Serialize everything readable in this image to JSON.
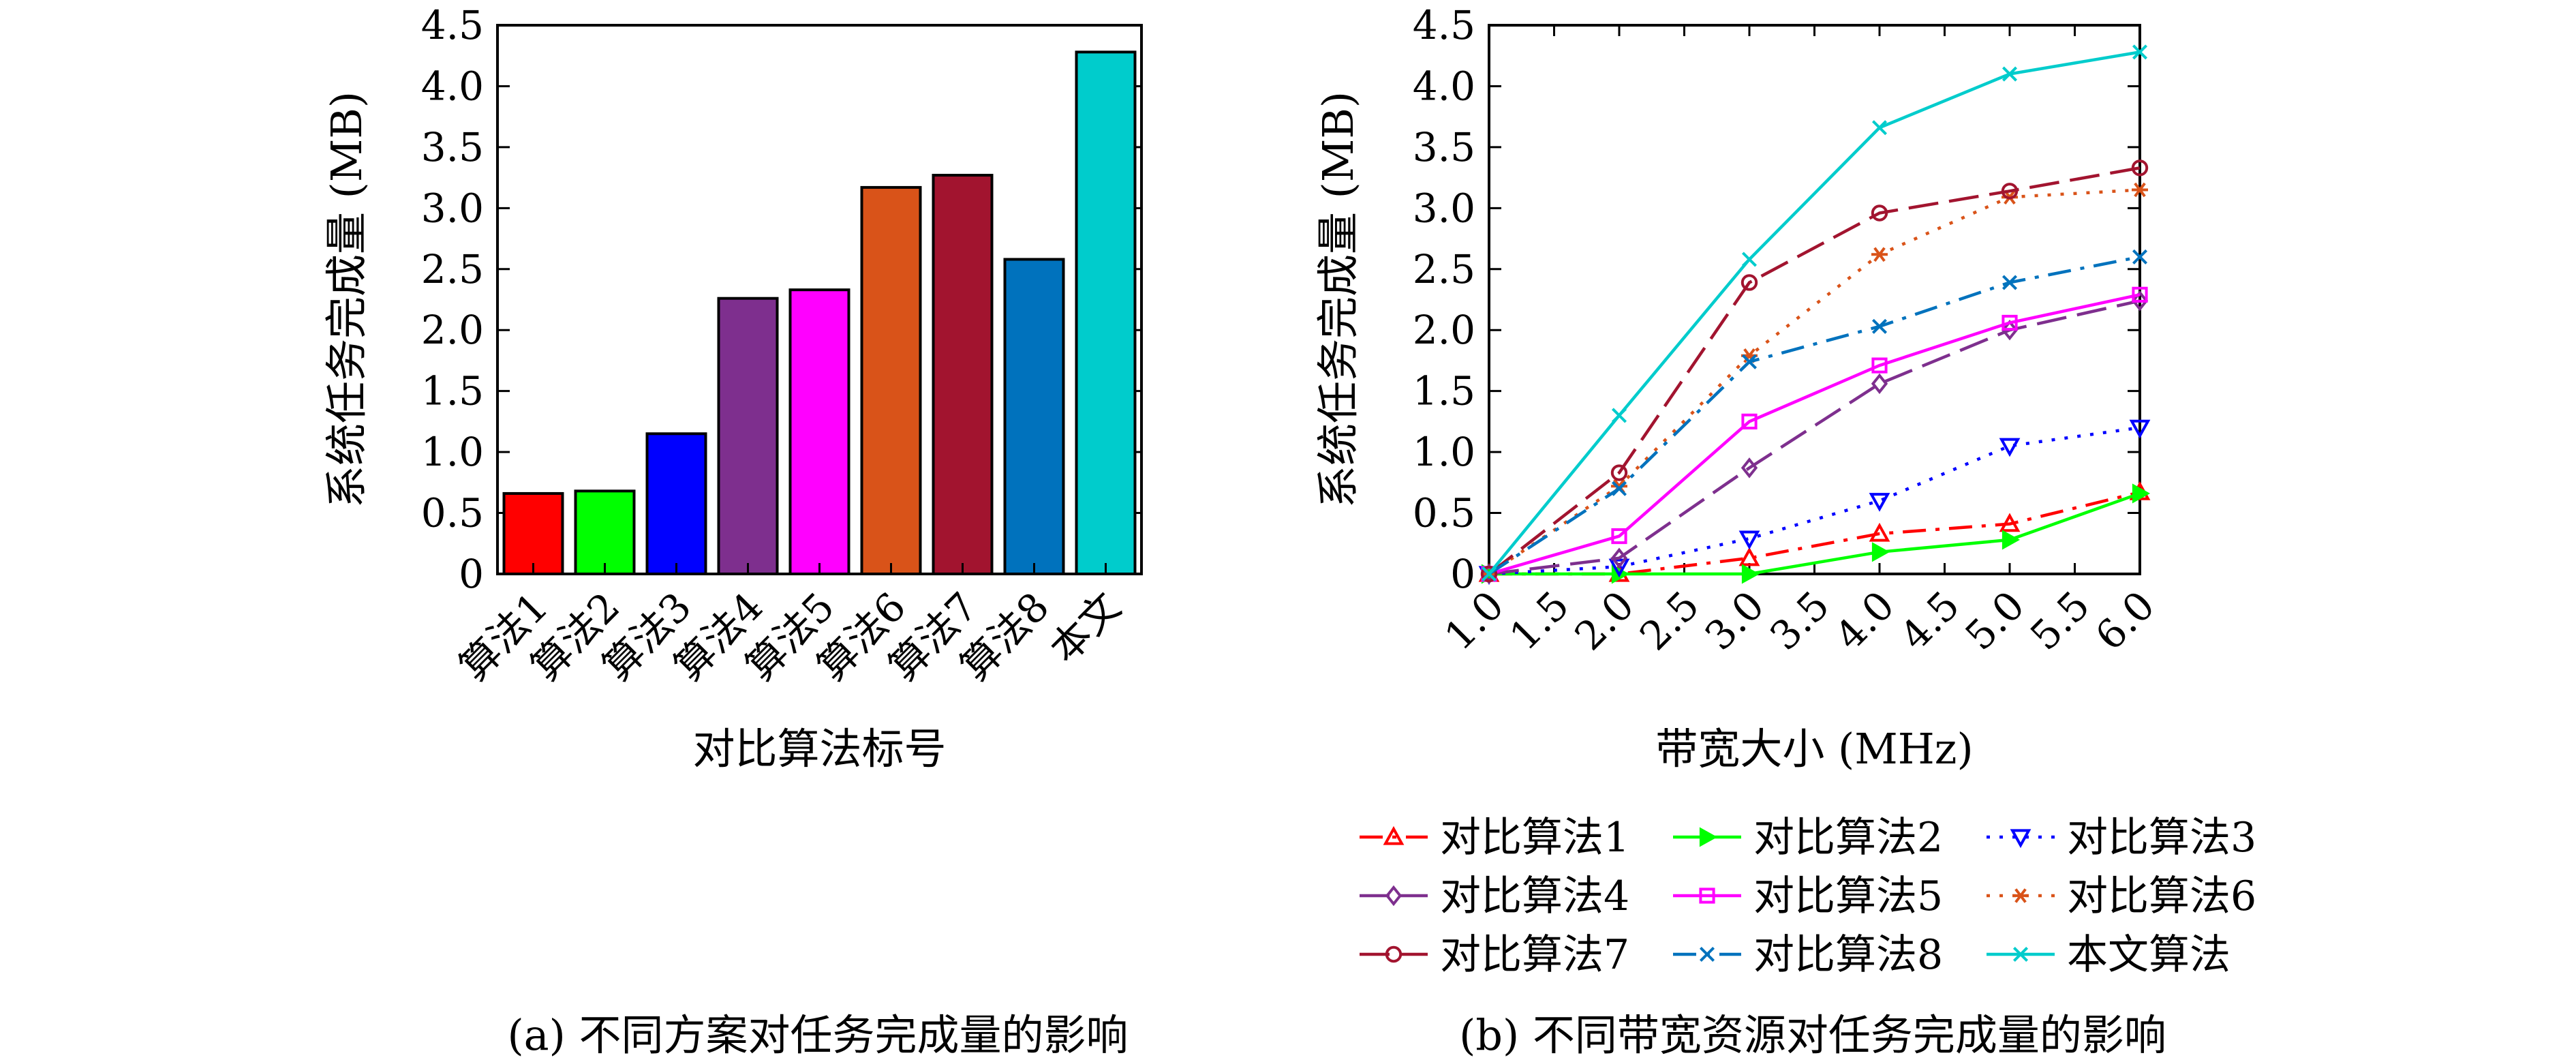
{
  "chart_data": [
    {
      "type": "bar",
      "categories": [
        "算法1",
        "算法2",
        "算法3",
        "算法4",
        "算法5",
        "算法6",
        "算法7",
        "算法8",
        "本文"
      ],
      "values": [
        0.66,
        0.68,
        1.15,
        2.26,
        2.33,
        3.17,
        3.27,
        2.58,
        4.28
      ],
      "colors": [
        "#ff0000",
        "#00ff00",
        "#0000ff",
        "#7e2f8e",
        "#ff00ff",
        "#d95319",
        "#a2142f",
        "#0072bd",
        "#00cccc"
      ],
      "xlabel": "对比算法标号",
      "ylabel": "系统任务完成量 (MB)",
      "ylim": [
        0,
        4.5
      ],
      "yticks": [
        "0",
        "0.5",
        "1.0",
        "1.5",
        "2.0",
        "2.5",
        "3.0",
        "3.5",
        "4.0",
        "4.5"
      ],
      "grid": false,
      "caption": "(a) 不同方案对任务完成量的影响"
    },
    {
      "type": "line",
      "x": [
        1.0,
        2.0,
        3.0,
        4.0,
        5.0,
        6.0
      ],
      "xlim": [
        1.0,
        6.0
      ],
      "xticks": [
        "1.0",
        "1.5",
        "2.0",
        "2.5",
        "3.0",
        "3.5",
        "4.0",
        "4.5",
        "5.0",
        "5.5",
        "6.0"
      ],
      "xlabel": "带宽大小 (MHz)",
      "ylabel": "系统任务完成量 (MB)",
      "ylim": [
        0,
        4.5
      ],
      "yticks": [
        "0",
        "0.5",
        "1.0",
        "1.5",
        "2.0",
        "2.5",
        "3.0",
        "3.5",
        "4.0",
        "4.5"
      ],
      "grid": false,
      "legend_position": "bottom",
      "caption": "(b) 不同带宽资源对任务完成量的影响",
      "series": [
        {
          "name": "对比算法1",
          "values": [
            0,
            0,
            0.13,
            0.33,
            0.41,
            0.67
          ],
          "color": "#ff0000",
          "marker": "triangle-up",
          "dash": "dashdot"
        },
        {
          "name": "对比算法2",
          "values": [
            0,
            0,
            0,
            0.18,
            0.28,
            0.66
          ],
          "color": "#00ff00",
          "marker": "triangle-right",
          "dash": "solid"
        },
        {
          "name": "对比算法3",
          "values": [
            0,
            0.06,
            0.29,
            0.6,
            1.05,
            1.2
          ],
          "color": "#0000ff",
          "marker": "triangle-down",
          "dash": "dotted"
        },
        {
          "name": "对比算法4",
          "values": [
            0,
            0.13,
            0.87,
            1.56,
            2.0,
            2.24
          ],
          "color": "#7e2f8e",
          "marker": "diamond",
          "dash": "longdash"
        },
        {
          "name": "对比算法5",
          "values": [
            0,
            0.31,
            1.25,
            1.71,
            2.06,
            2.29
          ],
          "color": "#ff00ff",
          "marker": "square",
          "dash": "solid"
        },
        {
          "name": "对比算法6",
          "values": [
            0,
            0.72,
            1.79,
            2.62,
            3.09,
            3.15
          ],
          "color": "#d95319",
          "marker": "asterisk",
          "dash": "dotted"
        },
        {
          "name": "对比算法7",
          "values": [
            0,
            0.83,
            2.39,
            2.96,
            3.14,
            3.33
          ],
          "color": "#a2142f",
          "marker": "circle",
          "dash": "longdash"
        },
        {
          "name": "对比算法8",
          "values": [
            0,
            0.7,
            1.74,
            2.03,
            2.39,
            2.6
          ],
          "color": "#0072bd",
          "marker": "x",
          "dash": "dashdot"
        },
        {
          "name": "本文算法",
          "values": [
            0,
            1.3,
            2.58,
            3.66,
            4.1,
            4.28
          ],
          "color": "#00cccc",
          "marker": "x",
          "dash": "solid"
        }
      ]
    }
  ]
}
